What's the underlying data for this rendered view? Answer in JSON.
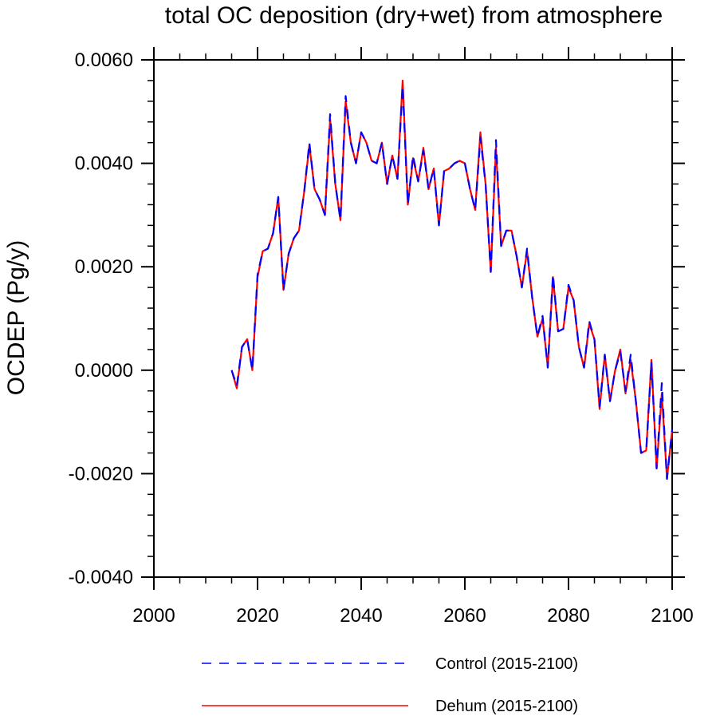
{
  "chart_data": {
    "type": "line",
    "title": "total OC deposition (dry+wet) from atmosphere",
    "xlabel": "",
    "ylabel": "OCDEP  (Pg/y)",
    "xlim": [
      2000,
      2100
    ],
    "ylim": [
      -0.004,
      0.006
    ],
    "x_major_ticks": [
      2000,
      2020,
      2040,
      2060,
      2080,
      2100
    ],
    "x_tick_labels": [
      "2000",
      "2020",
      "2040",
      "2060",
      "2080",
      "2100"
    ],
    "y_major_ticks": [
      -0.004,
      -0.002,
      0.0,
      0.002,
      0.004,
      0.006
    ],
    "y_tick_labels": [
      "-0.0040",
      "-0.0020",
      "0.0000",
      "0.0020",
      "0.0040",
      "0.0060"
    ],
    "grid": false,
    "legend_position": "bottom",
    "x": [
      2015,
      2016,
      2017,
      2018,
      2019,
      2020,
      2021,
      2022,
      2023,
      2024,
      2025,
      2026,
      2027,
      2028,
      2029,
      2030,
      2031,
      2032,
      2033,
      2034,
      2035,
      2036,
      2037,
      2038,
      2039,
      2040,
      2041,
      2042,
      2043,
      2044,
      2045,
      2046,
      2047,
      2048,
      2049,
      2050,
      2051,
      2052,
      2053,
      2054,
      2055,
      2056,
      2057,
      2058,
      2059,
      2060,
      2061,
      2062,
      2063,
      2064,
      2065,
      2066,
      2067,
      2068,
      2069,
      2070,
      2071,
      2072,
      2073,
      2074,
      2075,
      2076,
      2077,
      2078,
      2079,
      2080,
      2081,
      2082,
      2083,
      2084,
      2085,
      2086,
      2087,
      2088,
      2089,
      2090,
      2091,
      2092,
      2093,
      2094,
      2095,
      2096,
      2097,
      2098,
      2099,
      2100
    ],
    "series": [
      {
        "name": "Control (2015-2100)",
        "color": "#0000ff",
        "dash": "dashed",
        "values": [
          0.0,
          -0.0003,
          0.00045,
          0.0006,
          0.0,
          0.00185,
          0.0023,
          0.00235,
          0.00265,
          0.00335,
          0.00155,
          0.00225,
          0.00255,
          0.0027,
          0.00345,
          0.0044,
          0.0035,
          0.0033,
          0.003,
          0.00495,
          0.0036,
          0.0029,
          0.0053,
          0.0044,
          0.004,
          0.0046,
          0.0044,
          0.00405,
          0.004,
          0.0044,
          0.0036,
          0.00415,
          0.0037,
          0.0055,
          0.0032,
          0.00415,
          0.00365,
          0.00425,
          0.0035,
          0.0039,
          0.0028,
          0.00385,
          0.0039,
          0.004,
          0.00405,
          0.004,
          0.0035,
          0.0031,
          0.0045,
          0.0036,
          0.0019,
          0.00445,
          0.0024,
          0.0027,
          0.0027,
          0.0022,
          0.0016,
          0.00235,
          0.0014,
          0.00065,
          0.00105,
          5e-05,
          0.00185,
          0.00075,
          0.0008,
          0.00165,
          0.00135,
          0.00045,
          5e-05,
          0.00095,
          0.0006,
          -0.0007,
          0.0003,
          -0.0006,
          0.0,
          0.00035,
          -0.0004,
          0.0003,
          -0.0006,
          -0.0016,
          -0.00155,
          0.00015,
          -0.0019,
          -0.00025,
          -0.0021,
          -0.00115
        ]
      },
      {
        "name": "Dehum (2015-2100)",
        "color": "#ff0000",
        "dash": "solid",
        "values": [
          0.0,
          -0.00035,
          0.00045,
          0.0006,
          0.0,
          0.0018,
          0.0023,
          0.00235,
          0.00265,
          0.00335,
          0.00155,
          0.00225,
          0.00255,
          0.0027,
          0.00345,
          0.00435,
          0.0035,
          0.0033,
          0.003,
          0.00485,
          0.0036,
          0.0029,
          0.0052,
          0.0044,
          0.004,
          0.0046,
          0.0044,
          0.00405,
          0.004,
          0.0044,
          0.0036,
          0.00415,
          0.0037,
          0.0056,
          0.0032,
          0.0041,
          0.00365,
          0.0043,
          0.0035,
          0.0039,
          0.0028,
          0.00385,
          0.0039,
          0.004,
          0.00405,
          0.004,
          0.0035,
          0.0031,
          0.0046,
          0.0036,
          0.0019,
          0.0043,
          0.0024,
          0.0027,
          0.0027,
          0.0022,
          0.0016,
          0.0023,
          0.0014,
          0.00065,
          0.001,
          5e-05,
          0.0018,
          0.00075,
          0.0008,
          0.0016,
          0.00135,
          0.00045,
          5e-05,
          0.0009,
          0.0006,
          -0.00075,
          0.0003,
          -0.0006,
          0.0,
          0.0004,
          -0.00045,
          0.0002,
          -0.0006,
          -0.0016,
          -0.00155,
          0.0002,
          -0.0019,
          -0.00045,
          -0.0021,
          -0.00115
        ]
      }
    ]
  }
}
